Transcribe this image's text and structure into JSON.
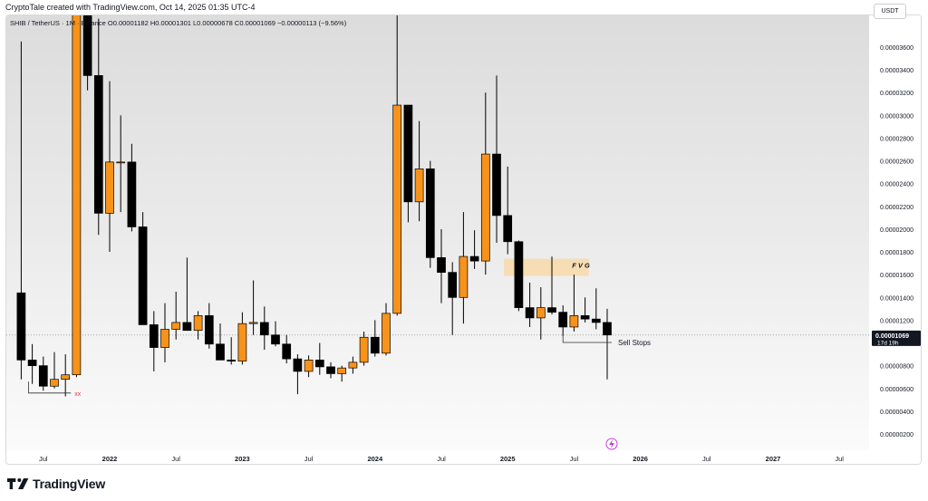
{
  "header": {
    "credit": "CryptoTale created with TradingView.com, Oct 14, 2025 01:35 UTC-4"
  },
  "legend": {
    "symbol": "SHIB / TetherUS · 1M · Binance",
    "open_label": "O",
    "open": "0.00001182",
    "high_label": "H",
    "high": "0.00001301",
    "low_label": "L",
    "low": "0.00000678",
    "close_label": "C",
    "close": "0.00001069",
    "change": "−0.00000113 (−9.56%)"
  },
  "currency_button": "USDT",
  "last_price": {
    "value": "0.00001069",
    "countdown": "17d 19h"
  },
  "annotations": {
    "fvg_label": "F V G",
    "sell_stops_label": "Sell Stops",
    "cross_marks": "xx"
  },
  "footer": {
    "brand": "TradingView"
  },
  "colors": {
    "up_candle": "#f7931a",
    "down_candle": "#000000",
    "fvg_zone": "#f8d9a8",
    "cross_marks": "#f23645",
    "text": "#131722",
    "grid_bg_top": "#dcdcdc",
    "grid_bg_bottom": "#fbfbfb"
  },
  "chart_data": {
    "type": "candlestick",
    "interval": "1M",
    "y_axis": {
      "ticks": [
        "0.00003600",
        "0.00003400",
        "0.00003200",
        "0.00003000",
        "0.00002800",
        "0.00002600",
        "0.00002400",
        "0.00002200",
        "0.00002000",
        "0.00001800",
        "0.00001600",
        "0.00001400",
        "0.00001200",
        "0.00001000",
        "0.00000800",
        "0.00000600",
        "0.00000400",
        "0.00000200"
      ]
    },
    "x_axis": {
      "ticks": [
        "Jul",
        "2022",
        "Jul",
        "2023",
        "Jul",
        "2024",
        "Jul",
        "2025",
        "Jul",
        "2026",
        "Jul",
        "2027",
        "Jul"
      ],
      "bold_ticks": [
        "2022",
        "2023",
        "2024",
        "2025",
        "2026",
        "2027"
      ]
    },
    "candles": [
      {
        "date": "2021-05",
        "o": 1.44e-05,
        "h": 3.65e-05,
        "l": 6.8e-06,
        "c": 8.5e-06
      },
      {
        "date": "2021-06",
        "o": 8.5e-06,
        "h": 9.9e-06,
        "l": 6.4e-06,
        "c": 8e-06
      },
      {
        "date": "2021-07",
        "o": 8e-06,
        "h": 8.8e-06,
        "l": 5.8e-06,
        "c": 6.2e-06
      },
      {
        "date": "2021-08",
        "o": 6.2e-06,
        "h": 9.2e-06,
        "l": 6e-06,
        "c": 6.8e-06
      },
      {
        "date": "2021-09",
        "o": 6.8e-06,
        "h": 9e-06,
        "l": 5.3e-06,
        "c": 7.2e-06
      },
      {
        "date": "2021-10",
        "o": 7.2e-06,
        "h": 8.8e-05,
        "l": 7e-06,
        "c": 5e-05
      },
      {
        "date": "2021-11",
        "o": 5e-05,
        "h": 5.78e-05,
        "l": 3.22e-05,
        "c": 3.35e-05
      },
      {
        "date": "2021-12",
        "o": 3.35e-05,
        "h": 3.85e-05,
        "l": 1.95e-05,
        "c": 2.14e-05
      },
      {
        "date": "2022-01",
        "o": 2.14e-05,
        "h": 3.3e-05,
        "l": 1.8e-05,
        "c": 2.59e-05
      },
      {
        "date": "2022-02",
        "o": 2.59e-05,
        "h": 3e-05,
        "l": 2.15e-05,
        "c": 2.59e-05
      },
      {
        "date": "2022-03",
        "o": 2.59e-05,
        "h": 2.75e-05,
        "l": 1.98e-05,
        "c": 2.02e-05
      },
      {
        "date": "2022-04",
        "o": 2.02e-05,
        "h": 2.15e-05,
        "l": 1.2e-05,
        "c": 1.16e-05
      },
      {
        "date": "2022-05",
        "o": 1.16e-05,
        "h": 1.28e-05,
        "l": 7.5e-06,
        "c": 9.6e-06
      },
      {
        "date": "2022-06",
        "o": 9.6e-06,
        "h": 1.35e-05,
        "l": 8.3e-06,
        "c": 1.12e-05
      },
      {
        "date": "2022-07",
        "o": 1.12e-05,
        "h": 1.45e-05,
        "l": 1.03e-05,
        "c": 1.18e-05
      },
      {
        "date": "2022-08",
        "o": 1.18e-05,
        "h": 1.75e-05,
        "l": 1.12e-05,
        "c": 1.11e-05
      },
      {
        "date": "2022-09",
        "o": 1.11e-05,
        "h": 1.28e-05,
        "l": 1.03e-05,
        "c": 1.24e-05
      },
      {
        "date": "2022-10",
        "o": 1.24e-05,
        "h": 1.35e-05,
        "l": 9.5e-06,
        "c": 9.9e-06
      },
      {
        "date": "2022-11",
        "o": 9.9e-06,
        "h": 1.17e-05,
        "l": 8.6e-06,
        "c": 8.5e-06
      },
      {
        "date": "2022-12",
        "o": 8.5e-06,
        "h": 1.05e-05,
        "l": 8.1e-06,
        "c": 8.4e-06
      },
      {
        "date": "2023-01",
        "o": 8.4e-06,
        "h": 1.27e-05,
        "l": 8.1e-06,
        "c": 1.17e-05
      },
      {
        "date": "2023-02",
        "o": 1.17e-05,
        "h": 1.55e-05,
        "l": 1.07e-05,
        "c": 1.18e-05
      },
      {
        "date": "2023-03",
        "o": 1.18e-05,
        "h": 1.32e-05,
        "l": 9.4e-06,
        "c": 1.07e-05
      },
      {
        "date": "2023-04",
        "o": 1.07e-05,
        "h": 1.19e-05,
        "l": 9.7e-06,
        "c": 9.9e-06
      },
      {
        "date": "2023-05",
        "o": 9.9e-06,
        "h": 1.07e-05,
        "l": 8.2e-06,
        "c": 8.6e-06
      },
      {
        "date": "2023-06",
        "o": 8.6e-06,
        "h": 9e-06,
        "l": 5.5e-06,
        "c": 7.5e-06
      },
      {
        "date": "2023-07",
        "o": 7.5e-06,
        "h": 8.9e-06,
        "l": 7e-06,
        "c": 8.5e-06
      },
      {
        "date": "2023-08",
        "o": 8.5e-06,
        "h": 1e-05,
        "l": 7.2e-06,
        "c": 7.9e-06
      },
      {
        "date": "2023-09",
        "o": 7.9e-06,
        "h": 8.3e-06,
        "l": 6.9e-06,
        "c": 7.3e-06
      },
      {
        "date": "2023-10",
        "o": 7.3e-06,
        "h": 8e-06,
        "l": 6.6e-06,
        "c": 7.8e-06
      },
      {
        "date": "2023-11",
        "o": 7.8e-06,
        "h": 8.8e-06,
        "l": 7.3e-06,
        "c": 8.3e-06
      },
      {
        "date": "2023-12",
        "o": 8.3e-06,
        "h": 1.1e-05,
        "l": 8e-06,
        "c": 1.05e-05
      },
      {
        "date": "2024-01",
        "o": 1.05e-05,
        "h": 1.2e-05,
        "l": 8.8e-06,
        "c": 9.1e-06
      },
      {
        "date": "2024-02",
        "o": 9.1e-06,
        "h": 1.35e-05,
        "l": 8.9e-06,
        "c": 1.26e-05
      },
      {
        "date": "2024-03",
        "o": 1.26e-05,
        "h": 4.58e-05,
        "l": 1.24e-05,
        "c": 3.09e-05
      },
      {
        "date": "2024-04",
        "o": 3.09e-05,
        "h": 3.09e-05,
        "l": 2.06e-05,
        "c": 2.24e-05
      },
      {
        "date": "2024-05",
        "o": 2.24e-05,
        "h": 2.95e-05,
        "l": 2.07e-05,
        "c": 2.53e-05
      },
      {
        "date": "2024-06",
        "o": 2.53e-05,
        "h": 2.6e-05,
        "l": 1.66e-05,
        "c": 1.75e-05
      },
      {
        "date": "2024-07",
        "o": 1.75e-05,
        "h": 2e-05,
        "l": 1.35e-05,
        "c": 1.62e-05
      },
      {
        "date": "2024-08",
        "o": 1.62e-05,
        "h": 1.71e-05,
        "l": 1.07e-05,
        "c": 1.4e-05
      },
      {
        "date": "2024-09",
        "o": 1.4e-05,
        "h": 2.15e-05,
        "l": 1.17e-05,
        "c": 1.76e-05
      },
      {
        "date": "2024-10",
        "o": 1.76e-05,
        "h": 1.99e-05,
        "l": 1.65e-05,
        "c": 1.72e-05
      },
      {
        "date": "2024-11",
        "o": 1.72e-05,
        "h": 3.2e-05,
        "l": 1.6e-05,
        "c": 2.66e-05
      },
      {
        "date": "2024-12",
        "o": 2.66e-05,
        "h": 3.35e-05,
        "l": 1.88e-05,
        "c": 2.12e-05
      },
      {
        "date": "2025-01",
        "o": 2.12e-05,
        "h": 2.55e-05,
        "l": 1.78e-05,
        "c": 1.89e-05
      },
      {
        "date": "2025-02",
        "o": 1.89e-05,
        "h": 1.9e-05,
        "l": 1.28e-05,
        "c": 1.31e-05
      },
      {
        "date": "2025-03",
        "o": 1.31e-05,
        "h": 1.53e-05,
        "l": 1.14e-05,
        "c": 1.22e-05
      },
      {
        "date": "2025-04",
        "o": 1.22e-05,
        "h": 1.49e-05,
        "l": 1.03e-05,
        "c": 1.31e-05
      },
      {
        "date": "2025-05",
        "o": 1.31e-05,
        "h": 1.76e-05,
        "l": 1.25e-05,
        "c": 1.27e-05
      },
      {
        "date": "2025-06",
        "o": 1.27e-05,
        "h": 1.33e-05,
        "l": 1.06e-05,
        "c": 1.14e-05
      },
      {
        "date": "2025-07",
        "o": 1.14e-05,
        "h": 1.6e-05,
        "l": 1.1e-05,
        "c": 1.24e-05
      },
      {
        "date": "2025-08",
        "o": 1.24e-05,
        "h": 1.4e-05,
        "l": 1.18e-05,
        "c": 1.21e-05
      },
      {
        "date": "2025-09",
        "o": 1.21e-05,
        "h": 1.48e-05,
        "l": 1.12e-05,
        "c": 1.18e-05
      },
      {
        "date": "2025-10",
        "o": 1.18e-05,
        "h": 1.3e-05,
        "l": 6.8e-06,
        "c": 1.07e-05
      }
    ],
    "fvg_zone": {
      "from": "2025-01",
      "to": "2025-08",
      "y_low": 1.59e-05,
      "y_high": 1.74e-05
    },
    "sell_stops_level": 1.045e-05,
    "last_price_level": 1.069e-05
  }
}
